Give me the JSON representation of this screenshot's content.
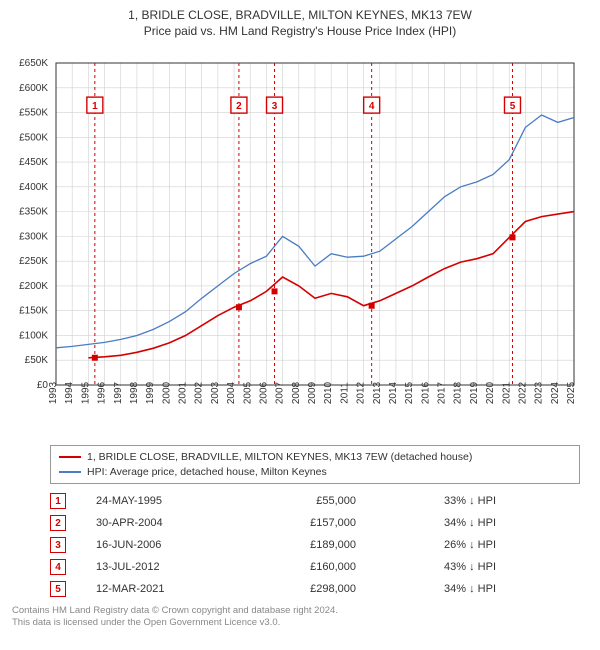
{
  "title_line1": "1, BRIDLE CLOSE, BRADVILLE, MILTON KEYNES, MK13 7EW",
  "title_line2": "Price paid vs. HM Land Registry's House Price Index (HPI)",
  "chart": {
    "type": "line",
    "x_years": [
      1993,
      1994,
      1995,
      1996,
      1997,
      1998,
      1999,
      2000,
      2001,
      2002,
      2003,
      2004,
      2005,
      2006,
      2007,
      2008,
      2009,
      2010,
      2011,
      2012,
      2013,
      2014,
      2015,
      2016,
      2017,
      2018,
      2019,
      2020,
      2021,
      2022,
      2023,
      2024,
      2025
    ],
    "ylim": [
      0,
      650000
    ],
    "ytick_step": 50000,
    "y_label_prefix": "£",
    "y_label_suffix": "K",
    "background_color": "#ffffff",
    "grid_color": "#d0d0d0",
    "axis_color": "#333333",
    "marker_line_color": "#d40000",
    "marker_line_dash": "3,3",
    "series": [
      {
        "name": "property",
        "label": "1, BRIDLE CLOSE, BRADVILLE, MILTON KEYNES, MK13 7EW (detached house)",
        "color": "#d40000",
        "line_width": 1.6,
        "values_k": [
          null,
          null,
          55,
          57,
          60,
          66,
          74,
          85,
          100,
          120,
          140,
          157,
          170,
          189,
          218,
          200,
          175,
          185,
          178,
          160,
          170,
          185,
          200,
          218,
          235,
          248,
          255,
          265,
          298,
          330,
          340,
          345,
          350
        ]
      },
      {
        "name": "hpi",
        "label": "HPI: Average price, detached house, Milton Keynes",
        "color": "#4a7cc4",
        "line_width": 1.3,
        "values_k": [
          75,
          78,
          82,
          86,
          92,
          100,
          112,
          128,
          148,
          175,
          200,
          225,
          245,
          260,
          300,
          280,
          240,
          265,
          258,
          260,
          270,
          295,
          320,
          350,
          380,
          400,
          410,
          425,
          455,
          520,
          545,
          530,
          540
        ]
      }
    ],
    "sale_markers": [
      {
        "n": 1,
        "year": 1995.4,
        "label_y": 565
      },
      {
        "n": 2,
        "year": 2004.3,
        "label_y": 565
      },
      {
        "n": 3,
        "year": 2006.5,
        "label_y": 565
      },
      {
        "n": 4,
        "year": 2012.5,
        "label_y": 565
      },
      {
        "n": 5,
        "year": 2021.2,
        "label_y": 565
      }
    ]
  },
  "legend": {
    "series1_label": "1, BRIDLE CLOSE, BRADVILLE, MILTON KEYNES, MK13 7EW (detached house)",
    "series2_label": "HPI: Average price, detached house, Milton Keynes"
  },
  "sales": [
    {
      "n": "1",
      "date": "24-MAY-1995",
      "price": "£55,000",
      "pct": "33% ↓ HPI"
    },
    {
      "n": "2",
      "date": "30-APR-2004",
      "price": "£157,000",
      "pct": "34% ↓ HPI"
    },
    {
      "n": "3",
      "date": "16-JUN-2006",
      "price": "£189,000",
      "pct": "26% ↓ HPI"
    },
    {
      "n": "4",
      "date": "13-JUL-2012",
      "price": "£160,000",
      "pct": "43% ↓ HPI"
    },
    {
      "n": "5",
      "date": "12-MAR-2021",
      "price": "£298,000",
      "pct": "34% ↓ HPI"
    }
  ],
  "footer_line1": "Contains HM Land Registry data © Crown copyright and database right 2024.",
  "footer_line2": "This data is licensed under the Open Government Licence v3.0.",
  "colors": {
    "property": "#d40000",
    "hpi": "#4a7cc4",
    "marker_border": "#d40000",
    "footer_text": "#888888"
  }
}
